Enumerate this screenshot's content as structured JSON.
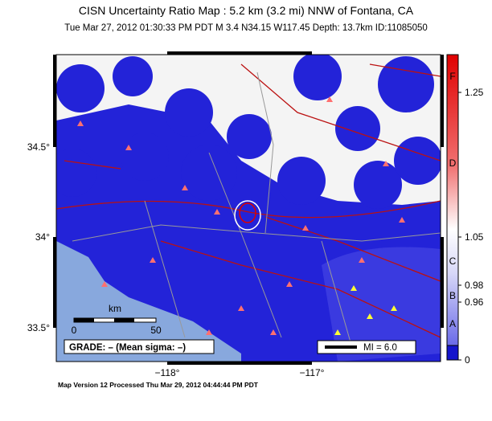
{
  "header": {
    "title": "CISN Uncertainty Ratio Map : 5.2 km (3.2 mi) NNW of Fontana, CA",
    "subtitle": "Tue Mar 27, 2012 01:30:33 PM PDT   M 3.4   N34.15 W117.45   Depth: 13.7km   ID:11085050"
  },
  "map": {
    "lat_labels": [
      "34.5°",
      "34°",
      "33.5°"
    ],
    "lon_labels": [
      "−118°",
      "−117°"
    ],
    "scale_bar": {
      "unit": "km",
      "start": "0",
      "end": "50"
    },
    "grade": "GRADE: – (Mean sigma: –)",
    "mmi_legend": "MI = 6.0"
  },
  "colorbar": {
    "grades": [
      "F",
      "D",
      "C",
      "B",
      "A"
    ],
    "values": [
      "1.25",
      "1.05",
      "0.98",
      "0.96",
      "0"
    ]
  },
  "footer": "Map Version 12 Processed Thu Mar 29, 2012 04:44:44 PM PDT"
}
